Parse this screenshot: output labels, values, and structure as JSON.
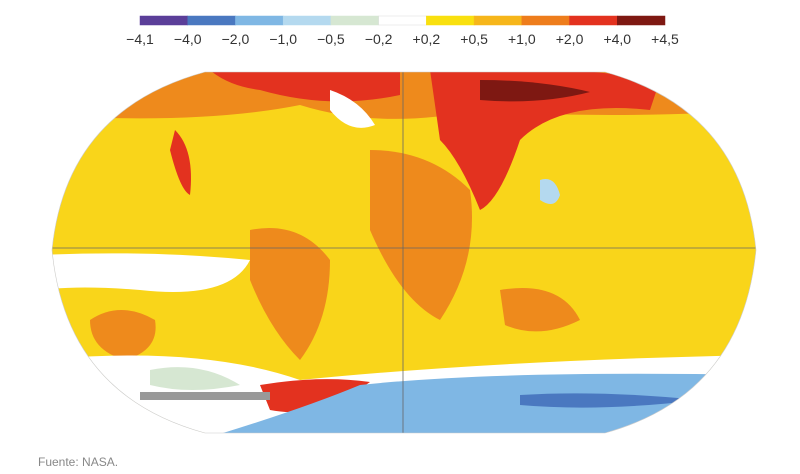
{
  "legend": {
    "labels": [
      "−4,1",
      "−4,0",
      "−2,0",
      "−1,0",
      "−0,5",
      "−0,2",
      "+0,2",
      "+0,5",
      "+1,0",
      "+2,0",
      "+4,0",
      "+4,5"
    ],
    "colors": [
      "#5b3f99",
      "#4a78c0",
      "#7fb7e4",
      "#b4d9ef",
      "#d6e7d2",
      "#ffffff",
      "#f9e00f",
      "#f6b61a",
      "#ee7d1c",
      "#e3321f",
      "#7e1812"
    ]
  },
  "source": "Fuente: NASA."
}
